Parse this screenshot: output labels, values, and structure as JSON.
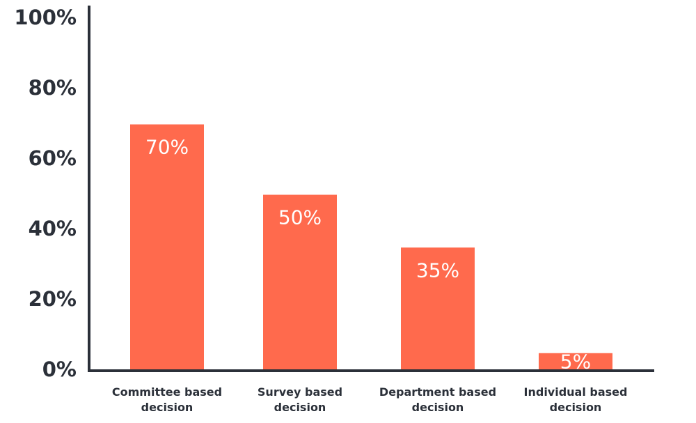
{
  "chart_data": {
    "type": "bar",
    "categories": [
      [
        "Committee based",
        "decision"
      ],
      [
        "Survey based",
        "decision"
      ],
      [
        "Department based",
        "decision"
      ],
      [
        "Individual based",
        "decision"
      ]
    ],
    "values": [
      70,
      50,
      35,
      5
    ],
    "data_labels": [
      "70%",
      "50%",
      "35%",
      "5%"
    ],
    "ylim": [
      0,
      100
    ],
    "yticks": [
      0,
      20,
      40,
      60,
      80,
      100
    ],
    "ytick_labels": [
      "0%",
      "20%",
      "40%",
      "60%",
      "80%",
      "100%"
    ],
    "bar_color": "#ff6a4d",
    "axis_color": "#2b3039",
    "data_label_color": "#ffffff",
    "grid": false,
    "legend": "none"
  }
}
